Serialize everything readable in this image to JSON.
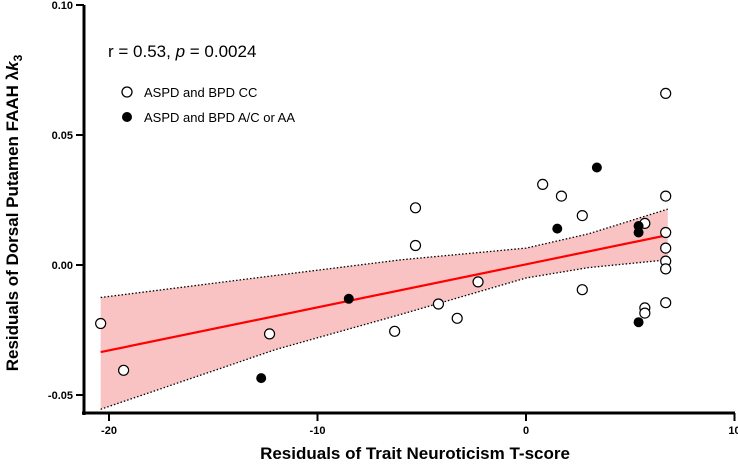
{
  "chart_data": {
    "type": "scatter",
    "xlabel": "Residuals of Trait Neuroticism T-score",
    "ylabel_main": "Residuals of Dorsal Putamen FAAH λ",
    "ylabel_k": "k",
    "ylabel_sub": "3",
    "xlim": [
      -21,
      10
    ],
    "ylim": [
      -0.06,
      0.1
    ],
    "x_ticks": [
      -20,
      -10,
      0,
      10
    ],
    "x_tick_labels": [
      "-20",
      "-10",
      "0",
      "10"
    ],
    "y_ticks": [
      -0.05,
      0.0,
      0.05,
      0.1
    ],
    "y_tick_labels": [
      "-0.05",
      "0.00",
      "0.05",
      "0.10"
    ],
    "grid": false,
    "annotation": {
      "prefix": "r = 0.53, ",
      "p_symbol": "p",
      "suffix": " = 0.0024"
    },
    "legend_position": "top-left",
    "series": [
      {
        "name": "ASPD and BPD CC",
        "marker": "open-circle",
        "points": [
          [
            -20.4,
            -0.0225
          ],
          [
            -19.3,
            -0.0405
          ],
          [
            -12.3,
            -0.0265
          ],
          [
            -6.3,
            -0.0255
          ],
          [
            -5.3,
            0.022
          ],
          [
            -5.3,
            0.0075
          ],
          [
            -4.2,
            -0.015
          ],
          [
            -3.3,
            -0.0205
          ],
          [
            -2.3,
            -0.0065
          ],
          [
            0.8,
            0.031
          ],
          [
            1.7,
            0.0265
          ],
          [
            2.7,
            0.019
          ],
          [
            2.7,
            -0.0095
          ],
          [
            5.7,
            0.016
          ],
          [
            5.7,
            -0.0165
          ],
          [
            5.7,
            -0.0185
          ],
          [
            6.7,
            0.066
          ],
          [
            6.7,
            0.0265
          ],
          [
            6.7,
            0.0125
          ],
          [
            6.7,
            0.0065
          ],
          [
            6.7,
            0.0015
          ],
          [
            6.7,
            -0.0015
          ],
          [
            6.7,
            -0.0145
          ]
        ]
      },
      {
        "name": "ASPD and BPD A/C or AA",
        "marker": "filled-circle",
        "points": [
          [
            -12.7,
            -0.0435
          ],
          [
            -8.5,
            -0.013
          ],
          [
            1.5,
            0.014
          ],
          [
            3.4,
            0.0375
          ],
          [
            5.4,
            0.015
          ],
          [
            5.4,
            0.0125
          ],
          [
            5.4,
            -0.022
          ]
        ]
      }
    ],
    "regression": {
      "x_range": [
        -20.4,
        6.8
      ],
      "y_at_range": [
        -0.0335,
        0.0115
      ],
      "line_color": "#ff0000",
      "ci_upper": [
        [
          -20.4,
          -0.0125
        ],
        [
          -12,
          -0.004
        ],
        [
          -6,
          0.002
        ],
        [
          0,
          0.0065
        ],
        [
          3,
          0.012
        ],
        [
          6.8,
          0.0215
        ]
      ],
      "ci_lower": [
        [
          -20.4,
          -0.0555
        ],
        [
          -12,
          -0.0325
        ],
        [
          -6,
          -0.019
        ],
        [
          0,
          -0.005
        ],
        [
          3,
          -0.001
        ],
        [
          6.8,
          0.002
        ]
      ],
      "ci_fill_color": "#f9b8b8"
    }
  }
}
